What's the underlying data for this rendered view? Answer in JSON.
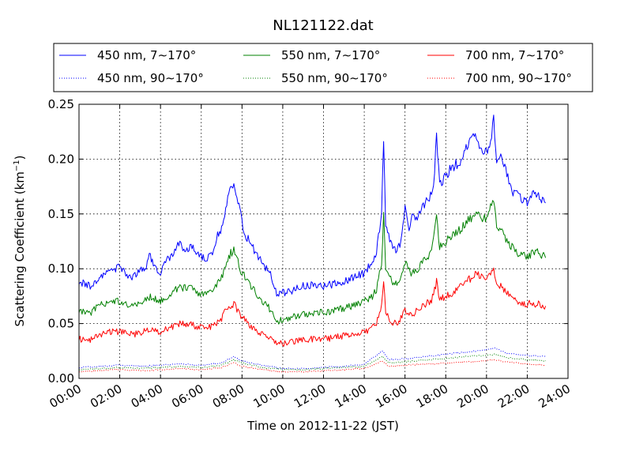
{
  "chart_data": {
    "type": "line",
    "title": "NL121122.dat",
    "xlabel": "Time on 2012-11-22 (JST)",
    "ylabel_main": "Scattering Coefficient (km",
    "ylabel_sup": "−1",
    "ylabel_end": ")",
    "xlim": [
      0,
      24
    ],
    "ylim": [
      0,
      0.25
    ],
    "x_unit": "hours",
    "x_ticks": [
      {
        "value": 0,
        "label": "00:00"
      },
      {
        "value": 2,
        "label": "02:00"
      },
      {
        "value": 4,
        "label": "04:00"
      },
      {
        "value": 6,
        "label": "06:00"
      },
      {
        "value": 8,
        "label": "08:00"
      },
      {
        "value": 10,
        "label": "10:00"
      },
      {
        "value": 12,
        "label": "12:00"
      },
      {
        "value": 14,
        "label": "14:00"
      },
      {
        "value": 16,
        "label": "16:00"
      },
      {
        "value": 18,
        "label": "18:00"
      },
      {
        "value": 20,
        "label": "20:00"
      },
      {
        "value": 22,
        "label": "22:00"
      },
      {
        "value": 24,
        "label": "24:00"
      }
    ],
    "y_ticks": [
      {
        "value": 0,
        "label": "0.00"
      },
      {
        "value": 0.05,
        "label": "0.05"
      },
      {
        "value": 0.1,
        "label": "0.10"
      },
      {
        "value": 0.15,
        "label": "0.15"
      },
      {
        "value": 0.2,
        "label": "0.20"
      },
      {
        "value": 0.25,
        "label": "0.25"
      }
    ],
    "grid": true,
    "legend_position": "top, above plot, 3 columns",
    "series": [
      {
        "name": "450 nm, 7∼170°",
        "color": "#0000ff",
        "style": "solid",
        "points": [
          [
            0,
            0.089
          ],
          [
            0.5,
            0.084
          ],
          [
            1,
            0.092
          ],
          [
            1.5,
            0.097
          ],
          [
            2,
            0.102
          ],
          [
            2.5,
            0.092
          ],
          [
            3,
            0.098
          ],
          [
            3.3,
            0.103
          ],
          [
            3.5,
            0.113
          ],
          [
            3.7,
            0.1
          ],
          [
            4,
            0.096
          ],
          [
            4.3,
            0.107
          ],
          [
            4.6,
            0.113
          ],
          [
            4.9,
            0.123
          ],
          [
            5.2,
            0.117
          ],
          [
            5.5,
            0.119
          ],
          [
            5.8,
            0.116
          ],
          [
            6,
            0.112
          ],
          [
            6.3,
            0.108
          ],
          [
            6.6,
            0.117
          ],
          [
            6.8,
            0.13
          ],
          [
            7,
            0.137
          ],
          [
            7.2,
            0.155
          ],
          [
            7.4,
            0.17
          ],
          [
            7.6,
            0.176
          ],
          [
            7.8,
            0.163
          ],
          [
            8,
            0.142
          ],
          [
            8.2,
            0.13
          ],
          [
            8.5,
            0.12
          ],
          [
            8.8,
            0.11
          ],
          [
            9,
            0.105
          ],
          [
            9.3,
            0.098
          ],
          [
            9.5,
            0.09
          ],
          [
            9.7,
            0.076
          ],
          [
            10,
            0.078
          ],
          [
            10.5,
            0.08
          ],
          [
            11,
            0.084
          ],
          [
            11.5,
            0.086
          ],
          [
            12,
            0.084
          ],
          [
            12.5,
            0.086
          ],
          [
            13,
            0.088
          ],
          [
            13.5,
            0.092
          ],
          [
            14,
            0.096
          ],
          [
            14.3,
            0.105
          ],
          [
            14.6,
            0.115
          ],
          [
            14.85,
            0.15
          ],
          [
            14.95,
            0.22
          ],
          [
            15.05,
            0.14
          ],
          [
            15.3,
            0.125
          ],
          [
            15.6,
            0.115
          ],
          [
            15.8,
            0.125
          ],
          [
            16,
            0.155
          ],
          [
            16.2,
            0.135
          ],
          [
            16.4,
            0.15
          ],
          [
            16.6,
            0.145
          ],
          [
            16.8,
            0.155
          ],
          [
            17,
            0.16
          ],
          [
            17.2,
            0.165
          ],
          [
            17.4,
            0.175
          ],
          [
            17.55,
            0.22
          ],
          [
            17.7,
            0.175
          ],
          [
            18,
            0.185
          ],
          [
            18.2,
            0.19
          ],
          [
            18.5,
            0.195
          ],
          [
            18.8,
            0.2
          ],
          [
            19.1,
            0.215
          ],
          [
            19.4,
            0.22
          ],
          [
            19.7,
            0.21
          ],
          [
            20,
            0.205
          ],
          [
            20.2,
            0.215
          ],
          [
            20.35,
            0.235
          ],
          [
            20.5,
            0.2
          ],
          [
            20.7,
            0.205
          ],
          [
            21,
            0.185
          ],
          [
            21.3,
            0.17
          ],
          [
            21.6,
            0.165
          ],
          [
            22,
            0.16
          ],
          [
            22.3,
            0.17
          ],
          [
            22.6,
            0.165
          ],
          [
            22.9,
            0.16
          ]
        ]
      },
      {
        "name": "450 nm, 90∼170°",
        "color": "#0000ff",
        "style": "dotted",
        "points": [
          [
            0,
            0.01
          ],
          [
            1,
            0.011
          ],
          [
            2,
            0.012
          ],
          [
            3,
            0.011
          ],
          [
            4,
            0.012
          ],
          [
            5,
            0.013
          ],
          [
            6,
            0.012
          ],
          [
            7,
            0.014
          ],
          [
            7.6,
            0.02
          ],
          [
            8,
            0.016
          ],
          [
            9,
            0.012
          ],
          [
            10,
            0.009
          ],
          [
            11,
            0.009
          ],
          [
            12,
            0.01
          ],
          [
            13,
            0.011
          ],
          [
            14,
            0.013
          ],
          [
            14.9,
            0.025
          ],
          [
            15.2,
            0.017
          ],
          [
            16,
            0.018
          ],
          [
            17,
            0.02
          ],
          [
            18,
            0.022
          ],
          [
            19,
            0.024
          ],
          [
            20,
            0.026
          ],
          [
            20.4,
            0.028
          ],
          [
            21,
            0.023
          ],
          [
            22,
            0.021
          ],
          [
            22.9,
            0.02
          ]
        ]
      },
      {
        "name": "550 nm, 7∼170°",
        "color": "#008000",
        "style": "solid",
        "points": [
          [
            0,
            0.062
          ],
          [
            0.5,
            0.059
          ],
          [
            1,
            0.066
          ],
          [
            1.5,
            0.071
          ],
          [
            2,
            0.07
          ],
          [
            2.5,
            0.065
          ],
          [
            3,
            0.068
          ],
          [
            3.5,
            0.075
          ],
          [
            4,
            0.07
          ],
          [
            4.5,
            0.078
          ],
          [
            5,
            0.083
          ],
          [
            5.5,
            0.082
          ],
          [
            6,
            0.076
          ],
          [
            6.5,
            0.078
          ],
          [
            7,
            0.092
          ],
          [
            7.3,
            0.11
          ],
          [
            7.6,
            0.118
          ],
          [
            7.9,
            0.1
          ],
          [
            8.2,
            0.09
          ],
          [
            8.6,
            0.08
          ],
          [
            9,
            0.07
          ],
          [
            9.3,
            0.065
          ],
          [
            9.7,
            0.052
          ],
          [
            10,
            0.054
          ],
          [
            10.5,
            0.056
          ],
          [
            11,
            0.058
          ],
          [
            11.5,
            0.06
          ],
          [
            12,
            0.06
          ],
          [
            12.5,
            0.062
          ],
          [
            13,
            0.064
          ],
          [
            13.5,
            0.067
          ],
          [
            14,
            0.07
          ],
          [
            14.3,
            0.073
          ],
          [
            14.6,
            0.08
          ],
          [
            14.85,
            0.105
          ],
          [
            14.95,
            0.15
          ],
          [
            15.05,
            0.1
          ],
          [
            15.3,
            0.09
          ],
          [
            15.6,
            0.085
          ],
          [
            16,
            0.105
          ],
          [
            16.3,
            0.095
          ],
          [
            16.6,
            0.1
          ],
          [
            17,
            0.11
          ],
          [
            17.3,
            0.115
          ],
          [
            17.55,
            0.15
          ],
          [
            17.7,
            0.12
          ],
          [
            18,
            0.125
          ],
          [
            18.5,
            0.132
          ],
          [
            19,
            0.142
          ],
          [
            19.5,
            0.15
          ],
          [
            20,
            0.145
          ],
          [
            20.35,
            0.163
          ],
          [
            20.5,
            0.14
          ],
          [
            21,
            0.125
          ],
          [
            21.5,
            0.115
          ],
          [
            22,
            0.112
          ],
          [
            22.5,
            0.115
          ],
          [
            22.9,
            0.11
          ]
        ]
      },
      {
        "name": "550 nm, 90∼170°",
        "color": "#008000",
        "style": "dotted",
        "points": [
          [
            0,
            0.008
          ],
          [
            1,
            0.009
          ],
          [
            2,
            0.01
          ],
          [
            3,
            0.009
          ],
          [
            4,
            0.01
          ],
          [
            5,
            0.011
          ],
          [
            6,
            0.01
          ],
          [
            7,
            0.012
          ],
          [
            7.6,
            0.017
          ],
          [
            8,
            0.014
          ],
          [
            9,
            0.01
          ],
          [
            10,
            0.008
          ],
          [
            11,
            0.008
          ],
          [
            12,
            0.009
          ],
          [
            13,
            0.01
          ],
          [
            14,
            0.011
          ],
          [
            14.9,
            0.02
          ],
          [
            15.2,
            0.014
          ],
          [
            16,
            0.015
          ],
          [
            17,
            0.017
          ],
          [
            18,
            0.018
          ],
          [
            19,
            0.02
          ],
          [
            20,
            0.021
          ],
          [
            20.4,
            0.022
          ],
          [
            21,
            0.019
          ],
          [
            22,
            0.017
          ],
          [
            22.9,
            0.016
          ]
        ]
      },
      {
        "name": "700 nm, 7∼170°",
        "color": "#ff0000",
        "style": "solid",
        "points": [
          [
            0,
            0.036
          ],
          [
            0.5,
            0.035
          ],
          [
            1,
            0.039
          ],
          [
            1.5,
            0.042
          ],
          [
            2,
            0.043
          ],
          [
            2.5,
            0.04
          ],
          [
            3,
            0.041
          ],
          [
            3.5,
            0.046
          ],
          [
            4,
            0.042
          ],
          [
            4.5,
            0.047
          ],
          [
            5,
            0.05
          ],
          [
            5.5,
            0.049
          ],
          [
            6,
            0.046
          ],
          [
            6.5,
            0.047
          ],
          [
            7,
            0.055
          ],
          [
            7.3,
            0.065
          ],
          [
            7.6,
            0.068
          ],
          [
            7.9,
            0.058
          ],
          [
            8.2,
            0.052
          ],
          [
            8.6,
            0.045
          ],
          [
            9,
            0.04
          ],
          [
            9.3,
            0.037
          ],
          [
            9.7,
            0.031
          ],
          [
            10,
            0.032
          ],
          [
            10.5,
            0.034
          ],
          [
            11,
            0.035
          ],
          [
            11.5,
            0.036
          ],
          [
            12,
            0.036
          ],
          [
            12.5,
            0.037
          ],
          [
            13,
            0.039
          ],
          [
            13.5,
            0.041
          ],
          [
            14,
            0.043
          ],
          [
            14.3,
            0.045
          ],
          [
            14.6,
            0.05
          ],
          [
            14.85,
            0.065
          ],
          [
            14.95,
            0.09
          ],
          [
            15.05,
            0.06
          ],
          [
            15.3,
            0.052
          ],
          [
            15.6,
            0.05
          ],
          [
            16,
            0.062
          ],
          [
            16.3,
            0.058
          ],
          [
            16.6,
            0.062
          ],
          [
            17,
            0.068
          ],
          [
            17.3,
            0.07
          ],
          [
            17.55,
            0.088
          ],
          [
            17.7,
            0.072
          ],
          [
            18,
            0.075
          ],
          [
            18.5,
            0.08
          ],
          [
            19,
            0.088
          ],
          [
            19.5,
            0.095
          ],
          [
            20,
            0.09
          ],
          [
            20.35,
            0.1
          ],
          [
            20.5,
            0.088
          ],
          [
            21,
            0.078
          ],
          [
            21.5,
            0.07
          ],
          [
            22,
            0.068
          ],
          [
            22.5,
            0.068
          ],
          [
            22.9,
            0.066
          ]
        ]
      },
      {
        "name": "700 nm, 90∼170°",
        "color": "#ff0000",
        "style": "dotted",
        "points": [
          [
            0,
            0.006
          ],
          [
            1,
            0.007
          ],
          [
            2,
            0.008
          ],
          [
            3,
            0.007
          ],
          [
            4,
            0.008
          ],
          [
            5,
            0.009
          ],
          [
            6,
            0.008
          ],
          [
            7,
            0.01
          ],
          [
            7.6,
            0.014
          ],
          [
            8,
            0.011
          ],
          [
            9,
            0.008
          ],
          [
            10,
            0.006
          ],
          [
            11,
            0.006
          ],
          [
            12,
            0.007
          ],
          [
            13,
            0.008
          ],
          [
            14,
            0.009
          ],
          [
            14.9,
            0.016
          ],
          [
            15.2,
            0.011
          ],
          [
            16,
            0.012
          ],
          [
            17,
            0.013
          ],
          [
            18,
            0.014
          ],
          [
            19,
            0.015
          ],
          [
            20,
            0.016
          ],
          [
            20.4,
            0.017
          ],
          [
            21,
            0.015
          ],
          [
            22,
            0.013
          ],
          [
            22.9,
            0.012
          ]
        ]
      }
    ]
  }
}
